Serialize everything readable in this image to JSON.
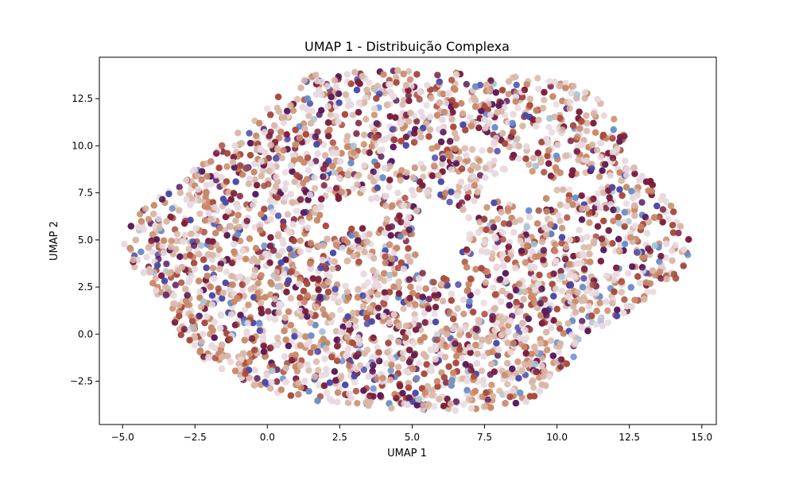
{
  "chart_data": {
    "type": "scatter",
    "title": "UMAP 1 - Distribuição Complexa",
    "xlabel": "UMAP 1",
    "ylabel": "UMAP 2",
    "xlim": [
      -5.8,
      15.5
    ],
    "ylim": [
      -4.8,
      14.7
    ],
    "xticks": [
      -5.0,
      -2.5,
      0.0,
      2.5,
      5.0,
      7.5,
      10.0,
      12.5,
      15.0
    ],
    "xtick_labels": [
      "−5.0",
      "−2.5",
      "0.0",
      "2.5",
      "5.0",
      "7.5",
      "10.0",
      "12.5",
      "15.0"
    ],
    "yticks": [
      -2.5,
      0.0,
      2.5,
      5.0,
      7.5,
      10.0,
      12.5
    ],
    "ytick_labels": [
      "−2.5",
      "0.0",
      "2.5",
      "5.0",
      "7.5",
      "10.0",
      "12.5"
    ],
    "grid": false,
    "legend": "none",
    "colormap": "twilight",
    "point_color_samples": [
      "#e8d9df",
      "#d9b7a8",
      "#c98a6a",
      "#a84a3e",
      "#7a1f3d",
      "#5a1a5c",
      "#4a4aa8",
      "#6a8fc8",
      "#a9c4d6"
    ],
    "hull": [
      [
        -5.0,
        5.0
      ],
      [
        -4.6,
        6.2
      ],
      [
        -3.6,
        7.6
      ],
      [
        -2.2,
        9.2
      ],
      [
        -0.8,
        11.0
      ],
      [
        0.4,
        12.8
      ],
      [
        1.6,
        13.8
      ],
      [
        4.5,
        14.0
      ],
      [
        7.5,
        13.9
      ],
      [
        10.0,
        13.5
      ],
      [
        11.2,
        12.8
      ],
      [
        12.2,
        11.2
      ],
      [
        12.6,
        9.3
      ],
      [
        13.4,
        7.9
      ],
      [
        14.1,
        6.5
      ],
      [
        14.7,
        4.8
      ],
      [
        14.2,
        3.0
      ],
      [
        12.8,
        1.6
      ],
      [
        11.4,
        0.2
      ],
      [
        10.0,
        -2.2
      ],
      [
        9.0,
        -3.6
      ],
      [
        7.0,
        -4.1
      ],
      [
        5.0,
        -4.0
      ],
      [
        3.0,
        -3.9
      ],
      [
        1.0,
        -3.4
      ],
      [
        -1.0,
        -2.5
      ],
      [
        -2.4,
        -1.2
      ],
      [
        -3.2,
        0.4
      ],
      [
        -3.9,
        2.2
      ],
      [
        -4.8,
        3.8
      ]
    ],
    "holes": [
      [
        3.0,
        6.4,
        1.2,
        0.8
      ],
      [
        5.9,
        5.2,
        0.9,
        2.0
      ],
      [
        4.9,
        9.5,
        0.8,
        0.5
      ],
      [
        8.7,
        7.8,
        1.3,
        0.8
      ],
      [
        7.2,
        10.3,
        0.6,
        0.5
      ],
      [
        10.9,
        8.0,
        0.6,
        0.5
      ],
      [
        2.8,
        3.0,
        0.6,
        0.4
      ],
      [
        6.6,
        3.2,
        0.5,
        0.4
      ],
      [
        3.6,
        0.2,
        0.6,
        0.35
      ],
      [
        9.1,
        10.6,
        0.5,
        0.4
      ],
      [
        12.0,
        4.0,
        0.5,
        0.4
      ],
      [
        1.9,
        5.4,
        0.5,
        0.35
      ]
    ],
    "n_points": 5200
  }
}
